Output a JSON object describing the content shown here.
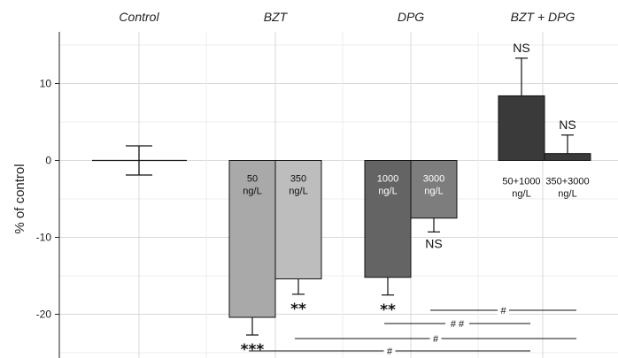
{
  "chart_data": {
    "type": "bar",
    "ylabel": "% of control",
    "ylim": [
      -25.5,
      15.5
    ],
    "yticks": [
      -20,
      -10,
      0,
      10
    ],
    "grid": true,
    "groups": [
      "Control",
      "BZT",
      "DPG",
      "BZT + DPG"
    ],
    "control": {
      "value": 0,
      "error": 1.9
    },
    "bars": [
      {
        "group": "BZT",
        "line1": "50",
        "line2": "ng/L",
        "value": -20.4,
        "error": 2.3,
        "color": "#a9a9a9",
        "significance": "***"
      },
      {
        "group": "BZT",
        "line1": "350",
        "line2": "ng/L",
        "value": -15.4,
        "error": 2.0,
        "color": "#bdbdbd",
        "significance": "**"
      },
      {
        "group": "DPG",
        "line1": "1000",
        "line2": "ng/L",
        "value": -15.2,
        "error": 2.3,
        "color": "#646464",
        "significance": "**"
      },
      {
        "group": "DPG",
        "line1": "3000",
        "line2": "ng/L",
        "value": -7.5,
        "error": 1.8,
        "color": "#7d7d7d",
        "significance": "NS"
      },
      {
        "group": "BZT + DPG",
        "line1": "50+1000",
        "line2": "ng/L",
        "value": 8.4,
        "error": 4.9,
        "color": "#3a3a3a",
        "significance": "NS"
      },
      {
        "group": "BZT + DPG",
        "line1": "350+3000",
        "line2": "ng/L",
        "value": 0.9,
        "error": 2.4,
        "color": "#3a3a3a",
        "significance": "NS"
      }
    ],
    "comparisons": [
      {
        "label": "#",
        "from": 3,
        "to": 5
      },
      {
        "label": "# #",
        "from": 2,
        "to": 4
      },
      {
        "label": "#",
        "from": 1,
        "to": 5
      },
      {
        "label": "#",
        "from": 0,
        "to": 4
      }
    ],
    "colors": {
      "grid": "#d9d9d9",
      "panel": "#ffffff",
      "axis": "#222222",
      "bar_outline": "#111111"
    }
  }
}
